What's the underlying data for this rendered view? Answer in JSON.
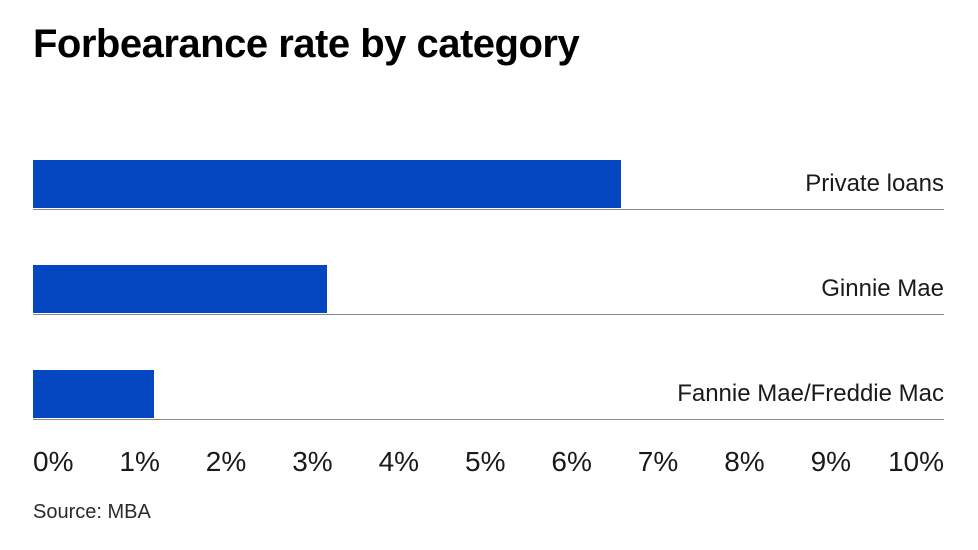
{
  "title": "Forbearance rate by category",
  "source_note": "Source: MBA",
  "colors": {
    "bar": "#0547c0",
    "divider": "#8a8a8a",
    "title_text": "#000000",
    "label_text": "#1a1a1a"
  },
  "chart_data": {
    "type": "bar",
    "orientation": "horizontal",
    "title": "Forbearance rate by category",
    "categories": [
      "Private loans",
      "Ginnie Mae",
      "Fannie Mae/Freddie Mac"
    ],
    "values": [
      6.8,
      3.4,
      1.4
    ],
    "unit": "%",
    "xlabel": "",
    "ylabel": "",
    "xlim": [
      0,
      10
    ],
    "tick_labels": [
      "0%",
      "1%",
      "2%",
      "3%",
      "4%",
      "5%",
      "6%",
      "7%",
      "8%",
      "9%",
      "10%"
    ],
    "grid": false,
    "legend": "none",
    "value_labels_shown": false,
    "source": "MBA"
  }
}
